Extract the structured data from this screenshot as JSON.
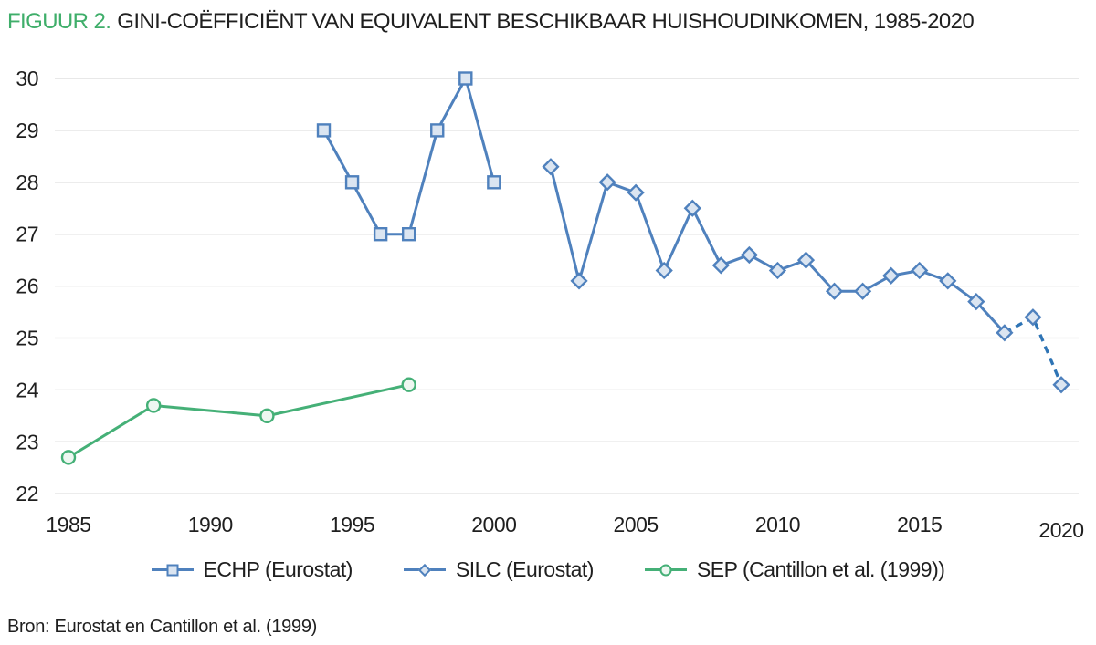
{
  "title": {
    "figure_label": "FIGUUR 2.",
    "text": "GINI-COËFFICIËNT VAN EQUIVALENT BESCHIKBAAR HUISHOUDINKOMEN, 1985-2020"
  },
  "source": "Bron: Eurostat en Cantillon et al. (1999)",
  "colors": {
    "accent_green": "#3fae6a",
    "line_blue": "#4f81bd",
    "dash_blue": "#2e74b5",
    "marker_fill_blue": "#dbe5f1",
    "line_green": "#45b077",
    "marker_fill_green": "#eef7f1",
    "grid": "#d9d9d9",
    "text": "#1f1f1f"
  },
  "chart_data": {
    "type": "line",
    "title": "GINI-COËFFICIËNT VAN EQUIVALENT BESCHIKBAAR HUISHOUDINKOMEN, 1985-2020",
    "xlabel": "",
    "ylabel": "",
    "ylim": [
      22,
      30
    ],
    "xlim": [
      1985,
      2020
    ],
    "yticks": [
      30,
      29,
      28,
      27,
      26,
      25,
      24,
      23,
      22
    ],
    "xticks": [
      1985,
      1990,
      1995,
      2000,
      2005,
      2010,
      2015,
      2020
    ],
    "xtick_dy": {
      "2020": 6
    },
    "grid": "horizontal",
    "legend_position": "bottom",
    "series": [
      {
        "name": "ECHP (Eurostat)",
        "marker": "square",
        "line_color": "#4f81bd",
        "marker_fill": "#dbe5f1",
        "style": "solid",
        "x": [
          1994,
          1995,
          1996,
          1997,
          1998,
          1999,
          2000
        ],
        "y": [
          29,
          28,
          27,
          27,
          29,
          30,
          28
        ]
      },
      {
        "name": "SILC (Eurostat)",
        "marker": "diamond",
        "line_color": "#4f81bd",
        "dash_color": "#2e74b5",
        "marker_fill": "#dbe5f1",
        "style": "solid",
        "dashed_from_x": 2018,
        "x": [
          2002,
          2003,
          2004,
          2005,
          2006,
          2007,
          2008,
          2009,
          2010,
          2011,
          2012,
          2013,
          2014,
          2015,
          2016,
          2017,
          2018,
          2019,
          2020
        ],
        "y": [
          28.3,
          26.1,
          28.0,
          27.8,
          26.3,
          27.5,
          26.4,
          26.6,
          26.3,
          26.5,
          25.9,
          25.9,
          26.2,
          26.3,
          26.1,
          25.7,
          25.1,
          25.4,
          24.1
        ]
      },
      {
        "name": "SEP (Cantillon et al. (1999))",
        "marker": "circle",
        "line_color": "#45b077",
        "marker_fill": "#eef7f1",
        "style": "solid",
        "x": [
          1985,
          1988,
          1992,
          1997
        ],
        "y": [
          22.7,
          23.7,
          23.5,
          24.1
        ]
      }
    ]
  }
}
